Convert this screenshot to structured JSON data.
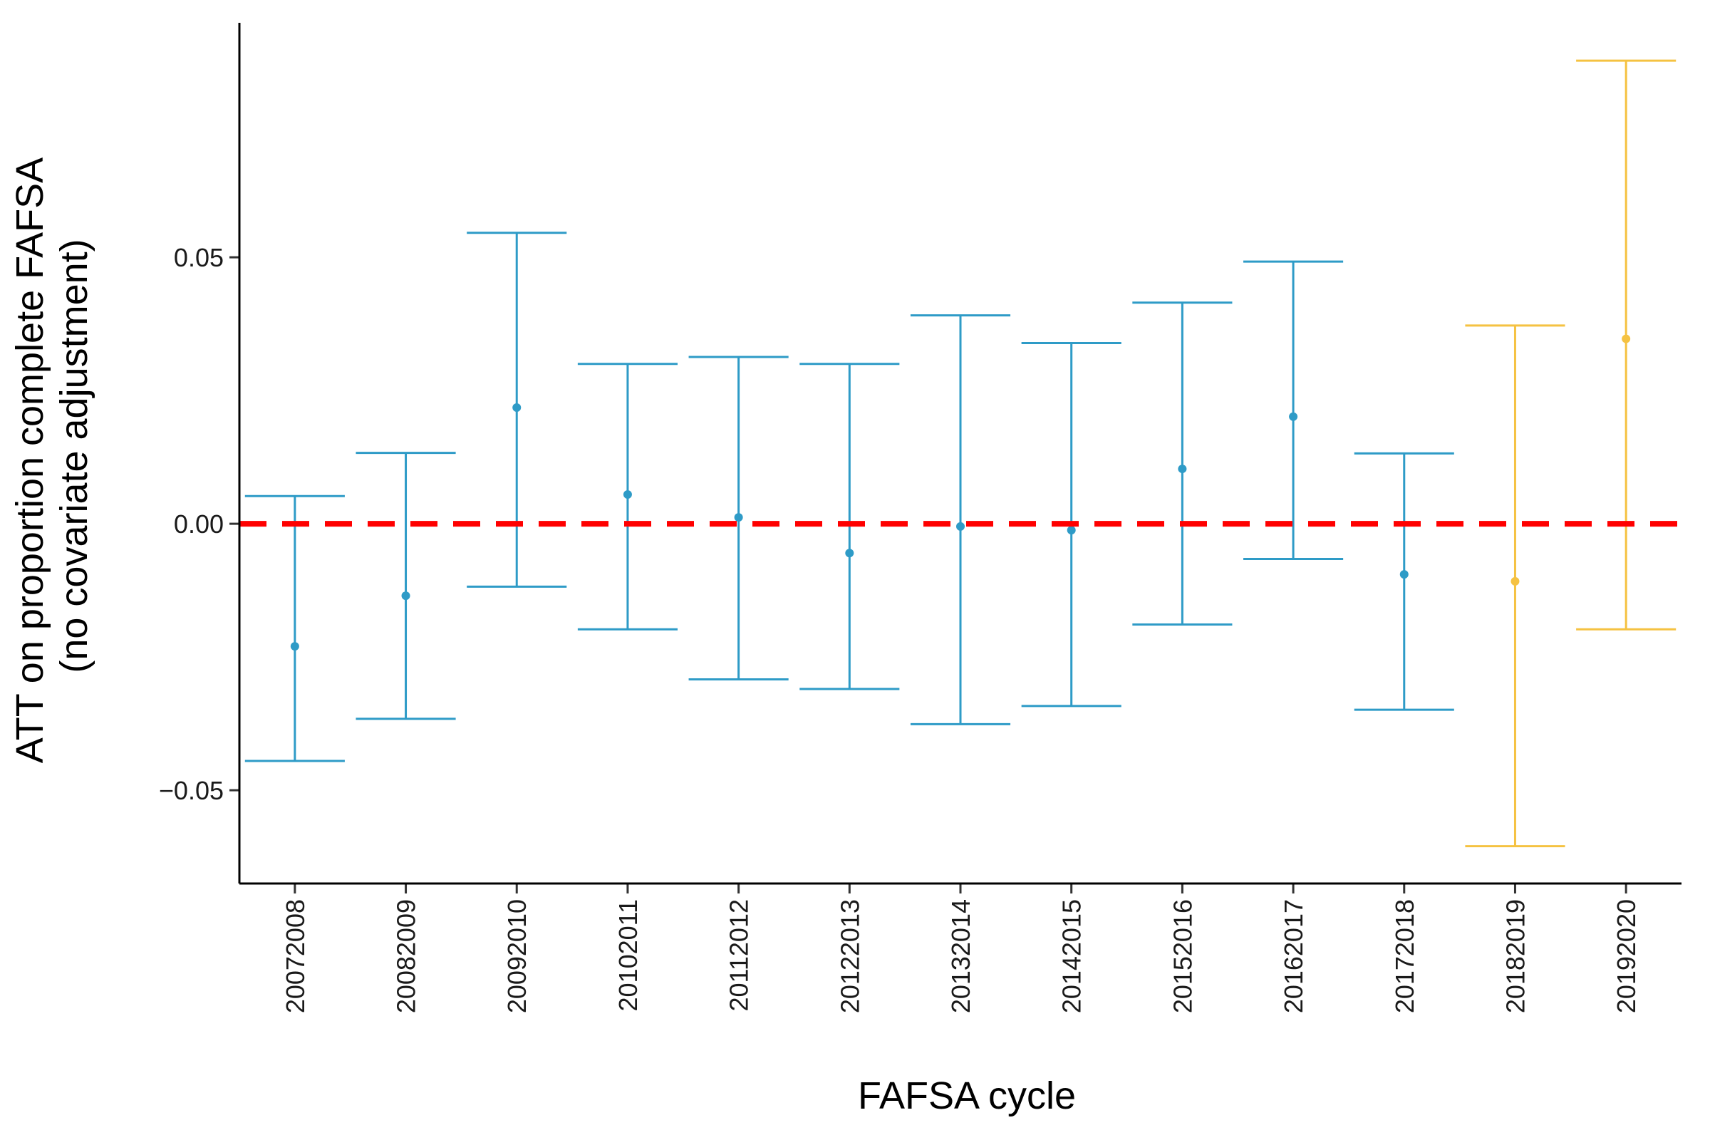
{
  "chart_data": {
    "type": "errorbar",
    "title": "",
    "xlabel": "FAFSA cycle",
    "ylabel_lines": [
      "ATT on proportion complete FAFSA",
      "(no covariate adjustment)"
    ],
    "categories": [
      "20072008",
      "20082009",
      "20092010",
      "20102011",
      "20112012",
      "20122013",
      "20132014",
      "20142015",
      "20152016",
      "20162017",
      "20172018",
      "20182019",
      "20192020"
    ],
    "estimates": [
      -0.023,
      -0.0135,
      0.0218,
      0.0055,
      0.0012,
      -0.0055,
      -0.0005,
      -0.0012,
      0.0103,
      0.0201,
      -0.0095,
      -0.0108,
      0.0347
    ],
    "lower": [
      -0.0445,
      -0.0366,
      -0.0118,
      -0.0198,
      -0.0292,
      -0.031,
      -0.0376,
      -0.0342,
      -0.0189,
      -0.0066,
      -0.0349,
      -0.0605,
      -0.0198
    ],
    "upper": [
      0.0052,
      0.0133,
      0.0546,
      0.03,
      0.0313,
      0.03,
      0.0391,
      0.0339,
      0.0415,
      0.0492,
      0.0132,
      0.0372,
      0.0869
    ],
    "point_colors": [
      "#2E9BC7",
      "#2E9BC7",
      "#2E9BC7",
      "#2E9BC7",
      "#2E9BC7",
      "#2E9BC7",
      "#2E9BC7",
      "#2E9BC7",
      "#2E9BC7",
      "#2E9BC7",
      "#2E9BC7",
      "#F5C242",
      "#F5C242"
    ],
    "y_ticks": [
      0.05,
      0.0,
      -0.05
    ],
    "y_tick_labels": [
      "0.05",
      "0.00",
      "−0.05"
    ],
    "ylim": [
      -0.0675,
      0.094
    ],
    "reference_line": {
      "y": 0.0,
      "color": "#FF0000",
      "style": "dashed"
    },
    "grid": false,
    "legend": "none"
  }
}
